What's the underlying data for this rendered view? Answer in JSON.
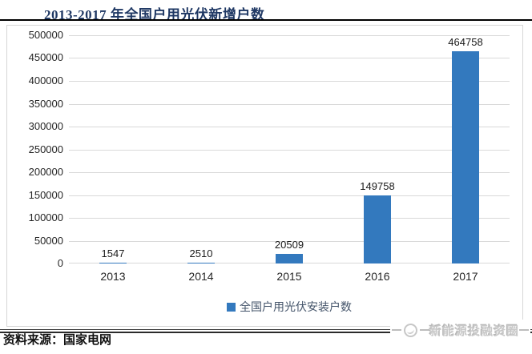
{
  "title": "2013-2017 年全国户用光伏新增户数",
  "source": "资料来源：国家电网",
  "watermark": "新能源投融资圈",
  "colors": {
    "bar": "#3379BE",
    "title": "#1F3864",
    "gridline": "#D9D9D9",
    "frame_border": "#D6D6D6",
    "tick_text": "#262626"
  },
  "chart_data": {
    "type": "bar",
    "title": "2013-2017 年全国户用光伏新增户数",
    "categories": [
      "2013",
      "2014",
      "2015",
      "2016",
      "2017"
    ],
    "values": [
      1547,
      2510,
      20509,
      149758,
      464758
    ],
    "series_name": "全国户用光伏安装户数",
    "xlabel": "",
    "ylabel": "",
    "ylim": [
      0,
      500000
    ],
    "ytick_interval": 50000,
    "yticks": [
      0,
      50000,
      100000,
      150000,
      200000,
      250000,
      300000,
      350000,
      400000,
      450000,
      500000
    ],
    "grid": true,
    "data_labels": true,
    "legend": [
      "全国户用光伏安装户数"
    ],
    "legend_position": "bottom"
  }
}
